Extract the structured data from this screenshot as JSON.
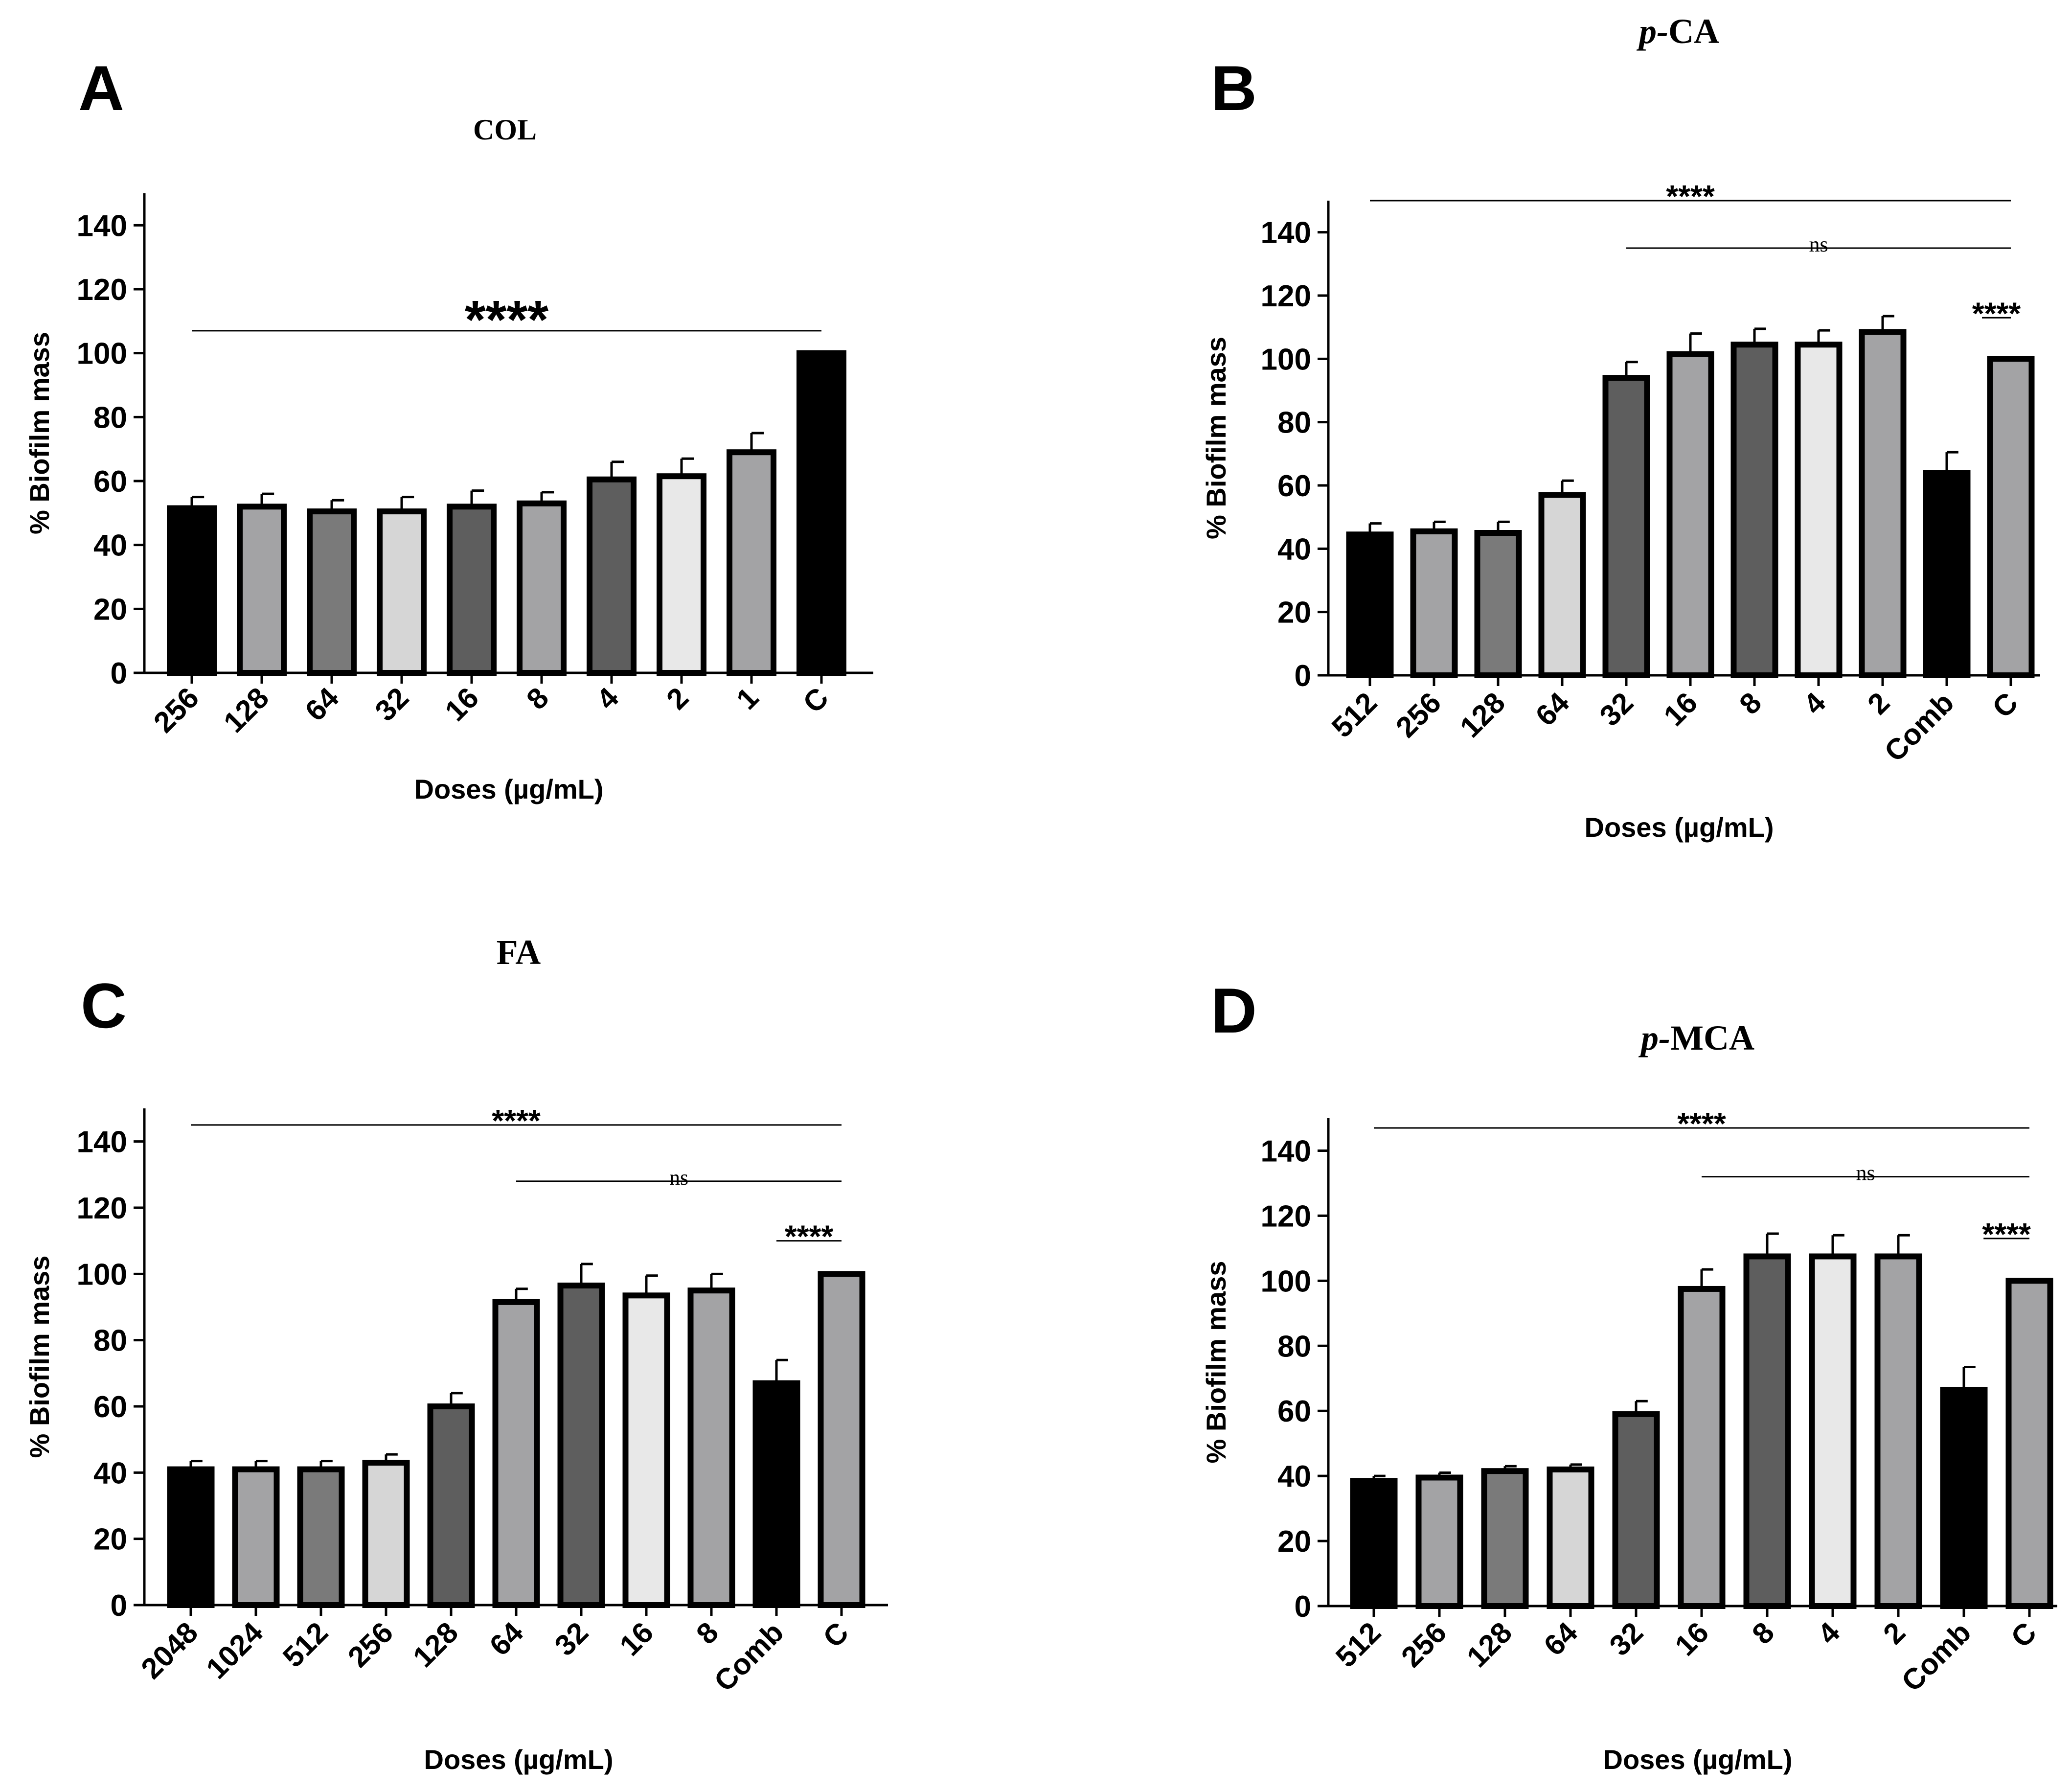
{
  "colors": {
    "black": "#000000",
    "dark_gray": "#5e5e5e",
    "mid_gray": "#7a7a7a",
    "gray": "#a3a3a5",
    "light_gray": "#d6d6d6",
    "lighter_gray": "#e8e8e8"
  },
  "chart_data": [
    {
      "panel": "A",
      "type": "bar",
      "title": "COL",
      "title_italic_prefix": "",
      "xlabel": "Doses (µg/mL)",
      "ylabel": "% Biofilm mass",
      "ylim": [
        0,
        150
      ],
      "yticks": [
        0,
        20,
        40,
        60,
        80,
        100,
        120,
        140
      ],
      "categories": [
        "256",
        "128",
        "64",
        "32",
        "16",
        "8",
        "4",
        "2",
        "1",
        "C"
      ],
      "values": [
        51.5,
        52,
        50.5,
        50.5,
        52,
        53,
        60.5,
        61.5,
        69,
        100
      ],
      "errors": [
        3.5,
        4,
        3.5,
        4.5,
        5,
        3.5,
        5.5,
        5.5,
        6,
        0
      ],
      "bar_colors": [
        "black",
        "gray",
        "mid_gray",
        "light_gray",
        "dark_gray",
        "gray",
        "dark_gray",
        "lighter_gray",
        "gray",
        "black"
      ],
      "significance": [
        {
          "label": "****",
          "from": 0,
          "to": 9,
          "y": 107,
          "size": "large",
          "style": "sans"
        }
      ]
    },
    {
      "panel": "B",
      "type": "bar",
      "title": "CA",
      "title_italic_prefix": "p-",
      "xlabel": "Doses (µg/mL)",
      "ylabel": "% Biofilm mass",
      "ylim": [
        0,
        150
      ],
      "yticks": [
        0,
        20,
        40,
        60,
        80,
        100,
        120,
        140
      ],
      "categories": [
        "512",
        "256",
        "128",
        "64",
        "32",
        "16",
        "8",
        "4",
        "2",
        "Comb",
        "C"
      ],
      "values": [
        44.5,
        45.5,
        45,
        57,
        94,
        101.5,
        104.5,
        104.5,
        108.5,
        64,
        100
      ],
      "errors": [
        3.5,
        3,
        3.5,
        4.5,
        5,
        6.5,
        5,
        4.5,
        5,
        6.5,
        0
      ],
      "bar_colors": [
        "black",
        "gray",
        "mid_gray",
        "light_gray",
        "dark_gray",
        "gray",
        "dark_gray",
        "lighter_gray",
        "gray",
        "black",
        "gray"
      ],
      "significance": [
        {
          "label": "****",
          "from": 0,
          "to": 10,
          "y": 150,
          "size": "medium",
          "style": "sans"
        },
        {
          "label": "ns",
          "from": 4,
          "to": 10,
          "y": 135,
          "size": "small",
          "style": "serif"
        },
        {
          "label": "****",
          "from": 9.55,
          "to": 10,
          "y": 113,
          "size": "medium",
          "style": "sans"
        }
      ]
    },
    {
      "panel": "C",
      "type": "bar",
      "title": "FA",
      "title_italic_prefix": "",
      "xlabel": "Doses (µg/mL)",
      "ylabel": "% Biofilm mass",
      "ylim": [
        0,
        150
      ],
      "yticks": [
        0,
        20,
        40,
        60,
        80,
        100,
        120,
        140
      ],
      "categories": [
        "2048",
        "1024",
        "512",
        "256",
        "128",
        "64",
        "32",
        "16",
        "8",
        "Comb",
        "C"
      ],
      "values": [
        41,
        41,
        41,
        43,
        60,
        91.5,
        96.5,
        93.5,
        95,
        67,
        100
      ],
      "errors": [
        2.5,
        2.5,
        2.5,
        2.5,
        4,
        4,
        6.5,
        6,
        5,
        7,
        0
      ],
      "bar_colors": [
        "black",
        "gray",
        "mid_gray",
        "light_gray",
        "dark_gray",
        "gray",
        "dark_gray",
        "lighter_gray",
        "gray",
        "black",
        "gray"
      ],
      "significance": [
        {
          "label": "****",
          "from": 0,
          "to": 10,
          "y": 145,
          "size": "medium",
          "style": "sans"
        },
        {
          "label": "ns",
          "from": 5,
          "to": 10,
          "y": 128,
          "size": "small",
          "style": "serif"
        },
        {
          "label": "****",
          "from": 9,
          "to": 10,
          "y": 110,
          "size": "medium",
          "style": "sans"
        }
      ]
    },
    {
      "panel": "D",
      "type": "bar",
      "title": "MCA",
      "title_italic_prefix": "p-",
      "xlabel": "Doses (µg/mL)",
      "ylabel": "% Biofilm mass",
      "ylim": [
        0,
        150
      ],
      "yticks": [
        0,
        20,
        40,
        60,
        80,
        100,
        120,
        140
      ],
      "categories": [
        "512",
        "256",
        "128",
        "64",
        "32",
        "16",
        "8",
        "4",
        "2",
        "Comb",
        "C"
      ],
      "values": [
        38.5,
        39.5,
        41.5,
        42,
        59,
        97.5,
        107.5,
        107.5,
        107.5,
        66.5,
        100
      ],
      "errors": [
        1.5,
        1.5,
        1.5,
        1.5,
        4,
        6,
        7,
        6.5,
        6.5,
        7,
        0
      ],
      "bar_colors": [
        "black",
        "gray",
        "mid_gray",
        "light_gray",
        "dark_gray",
        "gray",
        "dark_gray",
        "lighter_gray",
        "gray",
        "black",
        "gray"
      ],
      "significance": [
        {
          "label": "****",
          "from": 0,
          "to": 10,
          "y": 147,
          "size": "medium",
          "style": "sans"
        },
        {
          "label": "ns",
          "from": 5,
          "to": 10,
          "y": 132,
          "size": "small",
          "style": "serif"
        },
        {
          "label": "****",
          "from": 9.3,
          "to": 10,
          "y": 113,
          "size": "medium",
          "style": "sans"
        }
      ]
    }
  ]
}
